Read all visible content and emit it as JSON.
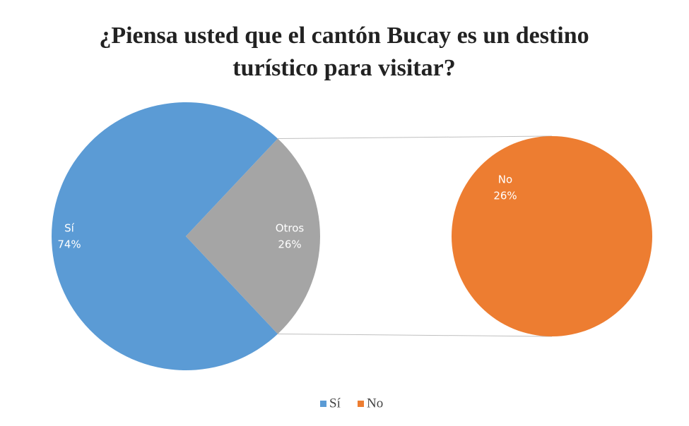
{
  "chart_data": {
    "type": "pie-of-pie",
    "title": "¿Piensa usted que el cantón Bucay es un destino turístico para visitar?",
    "categories": [
      "Sí",
      "Otros"
    ],
    "values": [
      74,
      26
    ],
    "value_labels": [
      "74%",
      "26%"
    ],
    "colors": [
      "#5b9bd5",
      "#a5a5a5"
    ],
    "secondary": {
      "categories": [
        "No"
      ],
      "values": [
        26
      ],
      "value_labels": [
        "26%"
      ],
      "colors": [
        "#ed7d31"
      ]
    }
  }
}
